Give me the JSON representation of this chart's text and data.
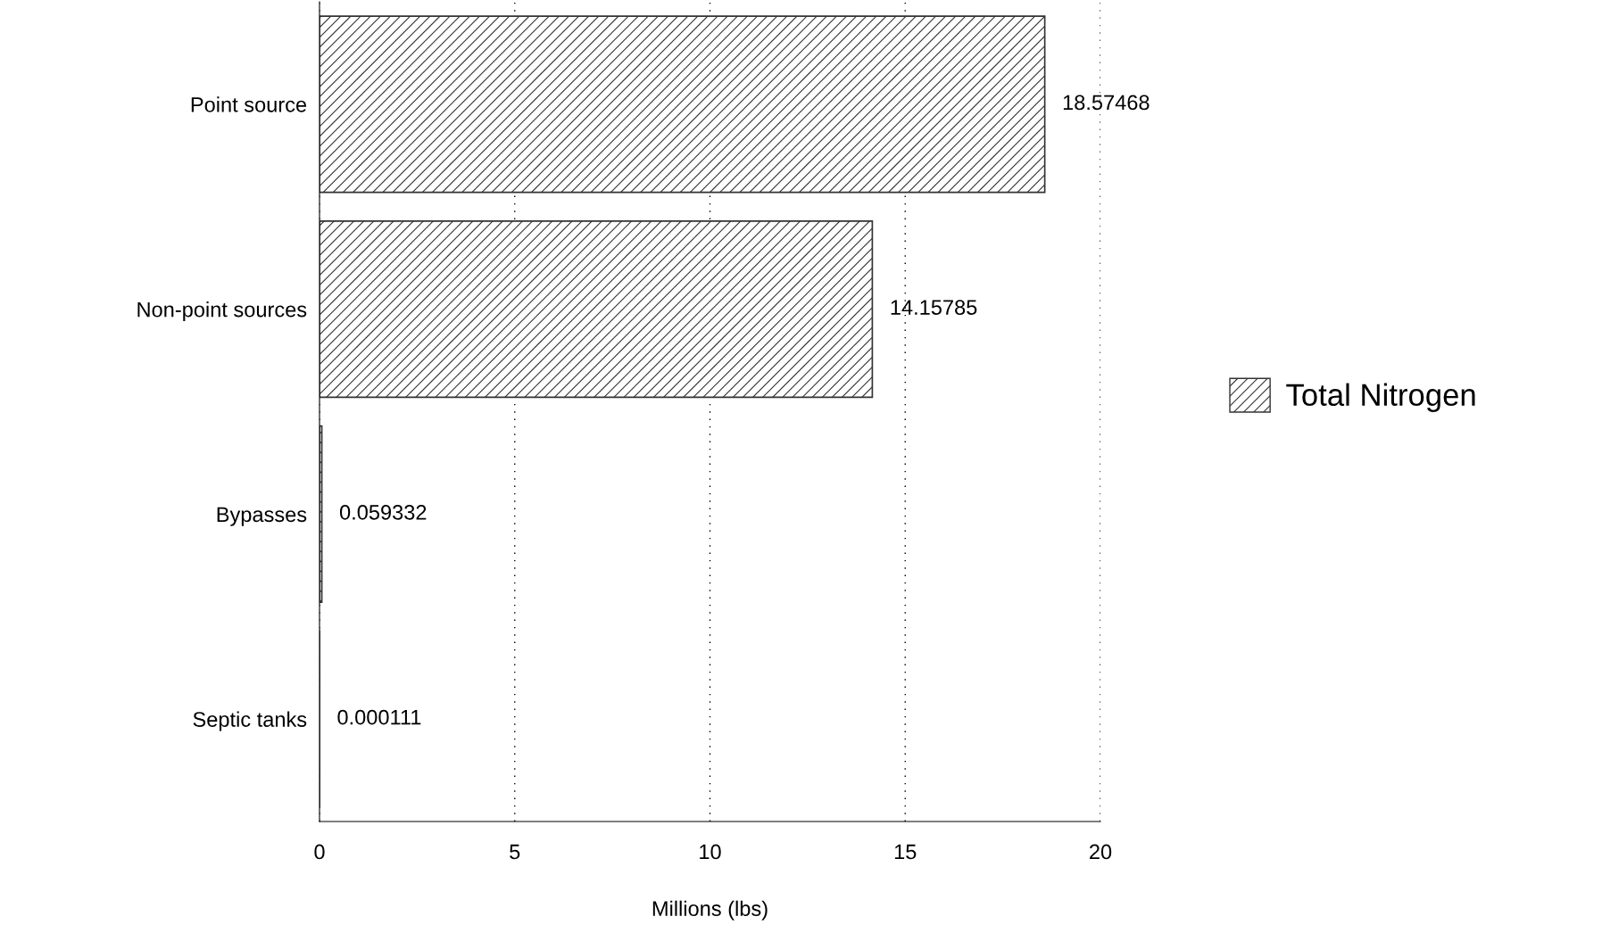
{
  "chart_data": {
    "type": "bar",
    "orientation": "horizontal",
    "xlabel": "Millions (lbs)",
    "categories": [
      "Point source",
      "Non-point sources",
      "Bypasses",
      "Septic tanks"
    ],
    "series": [
      {
        "name": "Total Nitrogen",
        "color": "#333333",
        "values": [
          18.57468,
          14.15785,
          0.059332,
          0.000111
        ]
      }
    ],
    "xlim": [
      0,
      20
    ],
    "xticks": [
      0,
      5,
      10,
      15,
      20
    ],
    "grid": "x",
    "legend": "right",
    "data_labels": true
  }
}
